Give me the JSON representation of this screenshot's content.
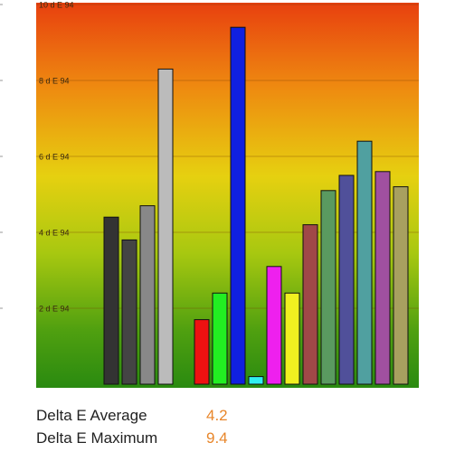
{
  "chart_data": {
    "type": "bar",
    "categories": [
      null,
      null,
      null,
      null,
      null,
      null,
      null,
      null,
      null,
      null,
      null,
      null,
      null,
      null,
      null,
      null,
      null
    ],
    "values": [
      4.4,
      3.8,
      4.7,
      8.3,
      null,
      1.7,
      2.4,
      9.4,
      0.2,
      3.1,
      2.4,
      4.2,
      5.1,
      5.5,
      6.4,
      5.6,
      5.2
    ],
    "colors": [
      "#333333",
      "#444444",
      "#888888",
      "#bbbbbb",
      null,
      "#ee1111",
      "#22ee22",
      "#1020e0",
      "#30f0f0",
      "#ee20ee",
      "#f0f020",
      "#a04848",
      "#5a9a60",
      "#50509a",
      "#50a0a0",
      "#a050a0",
      "#a8a060"
    ],
    "ylim": [
      0,
      10
    ],
    "yticks": [
      {
        "value": 2,
        "label": "2 d E 94"
      },
      {
        "value": 4,
        "label": "4 d E 94"
      },
      {
        "value": 6,
        "label": "6 d E 94"
      },
      {
        "value": 8,
        "label": "8 d E 94"
      },
      {
        "value": 10,
        "label": "10 d E 94"
      }
    ],
    "grid": true
  },
  "stats": [
    {
      "label": "Delta E Average",
      "value": 4.2
    },
    {
      "label": "Delta E Maximum",
      "value": 9.4
    }
  ]
}
